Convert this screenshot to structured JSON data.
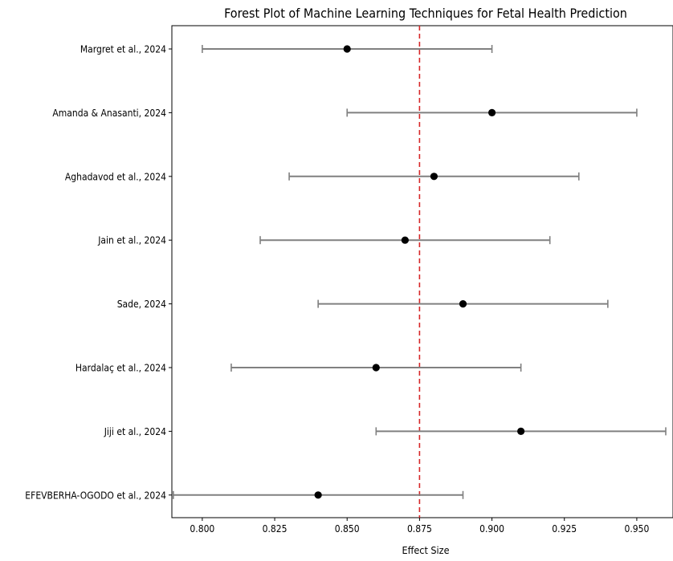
{
  "chart_data": {
    "type": "forest",
    "title": "Forest Plot of Machine Learning Techniques for Fetal Health Prediction",
    "xlabel": "Effect Size",
    "ylabel": "",
    "xlim": [
      0.7895,
      0.9625
    ],
    "xticks": [
      0.8,
      0.825,
      0.85,
      0.875,
      0.9,
      0.925,
      0.95
    ],
    "xtick_labels": [
      "0.800",
      "0.825",
      "0.850",
      "0.875",
      "0.900",
      "0.925",
      "0.950"
    ],
    "reference_line": {
      "x": 0.875,
      "style": "dashed",
      "color": "#d62728"
    },
    "grid": false,
    "studies": [
      {
        "label": "Margret et al., 2024",
        "effect": 0.85,
        "lower": 0.8,
        "upper": 0.9
      },
      {
        "label": "Amanda & Anasanti, 2024",
        "effect": 0.9,
        "lower": 0.85,
        "upper": 0.95
      },
      {
        "label": "Aghadavod et al., 2024",
        "effect": 0.88,
        "lower": 0.83,
        "upper": 0.93
      },
      {
        "label": "Jain et al., 2024",
        "effect": 0.87,
        "lower": 0.82,
        "upper": 0.92
      },
      {
        "label": "Sade, 2024",
        "effect": 0.89,
        "lower": 0.84,
        "upper": 0.94
      },
      {
        "label": "Hardalaç et al., 2024",
        "effect": 0.86,
        "lower": 0.81,
        "upper": 0.91
      },
      {
        "label": "Jiji et al., 2024",
        "effect": 0.91,
        "lower": 0.86,
        "upper": 0.96
      },
      {
        "label": "EFEVBERHA-OGODO et al., 2024",
        "effect": 0.84,
        "lower": 0.79,
        "upper": 0.89
      }
    ],
    "colors": {
      "ci": "#808080",
      "point": "#000000",
      "axis": "#000000"
    }
  }
}
